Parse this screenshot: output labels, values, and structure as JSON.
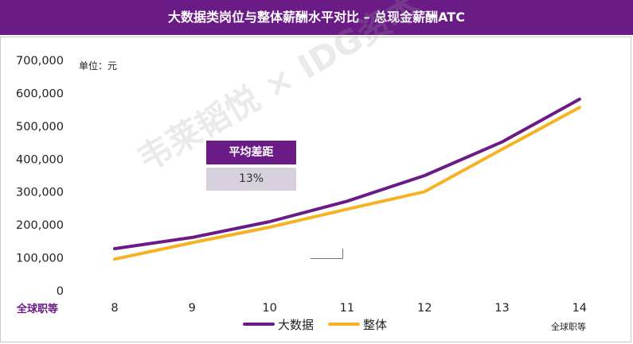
{
  "header": {
    "title": "大数据类岗位与整体薪酬水平对比 – 总现金薪酬ATC"
  },
  "unit_label": "单位：元",
  "x_caption_left": "全球职等",
  "x_caption_right": "全球职等",
  "annotation": {
    "title": "平均差距",
    "value": "13%"
  },
  "watermark": "韦莱韬悦 × IDG资本",
  "colors": {
    "header": "#6a1b86",
    "big_data": "#6a1b86",
    "overall": "#f5b324"
  },
  "chart_data": {
    "type": "line",
    "title": "",
    "xlabel": "全球职等",
    "ylabel": "",
    "x": [
      "8",
      "9",
      "10",
      "11",
      "12",
      "13",
      "14"
    ],
    "ylim": [
      0,
      700000
    ],
    "yticks": [
      "0",
      "100,000",
      "200,000",
      "300,000",
      "400,000",
      "500,000",
      "600,000",
      "700,000"
    ],
    "series": [
      {
        "name": "大数据",
        "color": "#6a1b86",
        "values": [
          128000,
          162000,
          210000,
          272000,
          350000,
          452000,
          582000
        ]
      },
      {
        "name": "整体",
        "color": "#f5b324",
        "values": [
          96000,
          146000,
          193000,
          248000,
          301000,
          430000,
          557000
        ]
      }
    ],
    "legend": "bottom",
    "grid": false
  }
}
